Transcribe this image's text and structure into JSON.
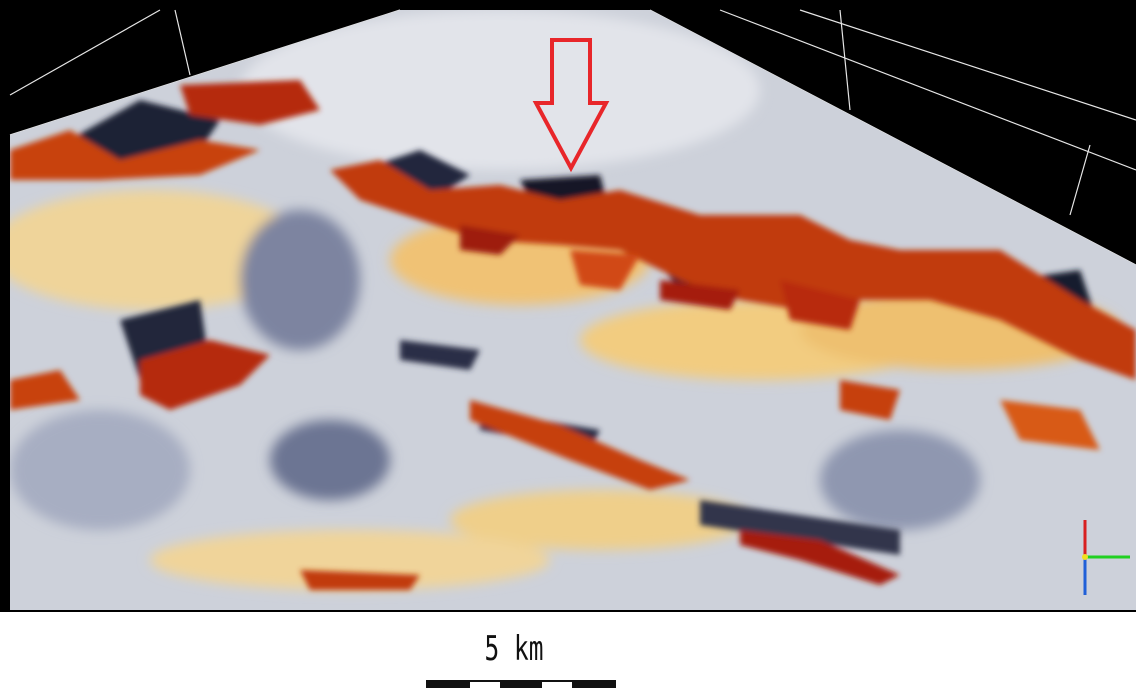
{
  "scale_bar": {
    "label": "5 km"
  }
}
